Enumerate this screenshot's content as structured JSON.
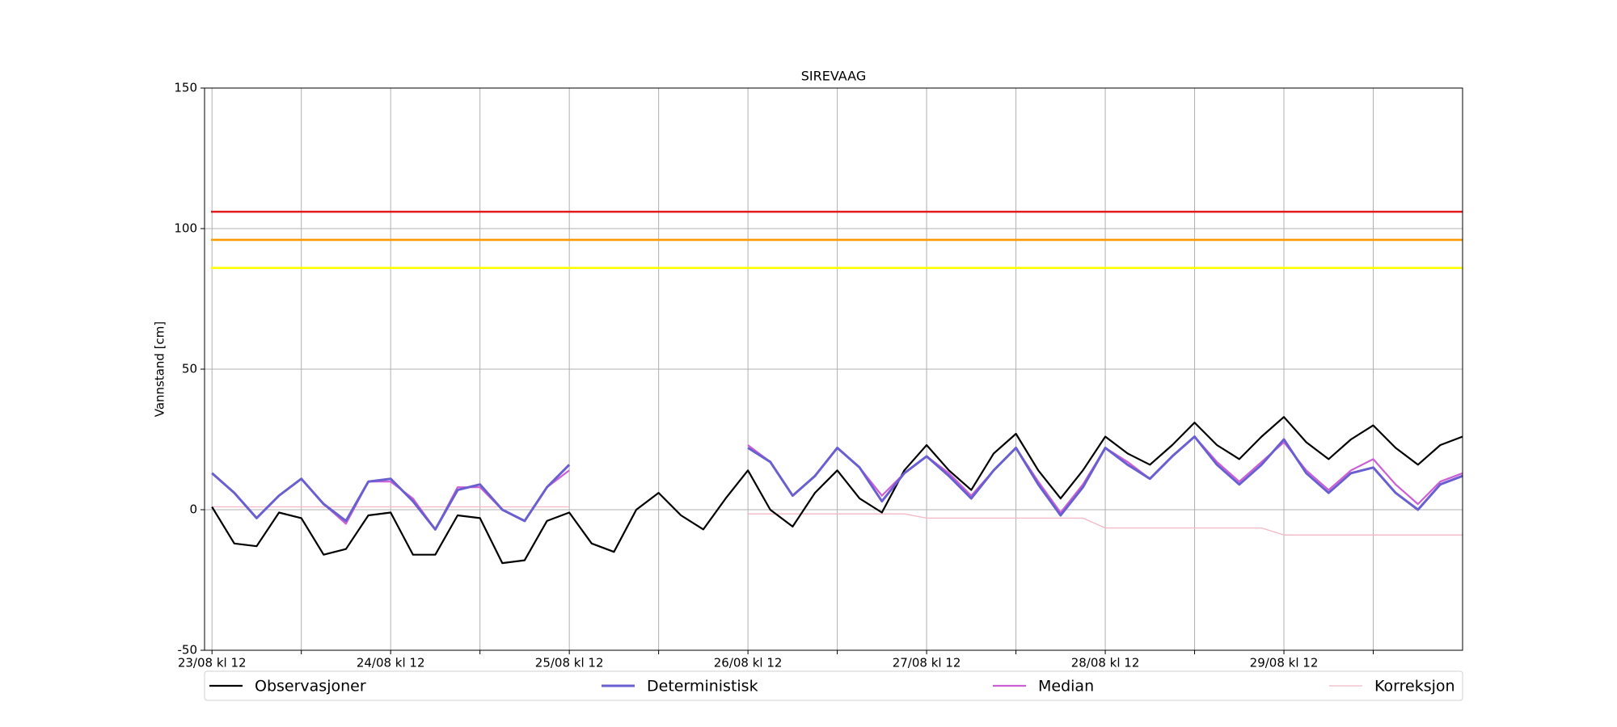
{
  "chart_data": {
    "type": "line",
    "title": "SIREVAAG",
    "ylabel": "Vannstand [cm]",
    "x": [
      "23/08 kl 12",
      "23/08 kl 15",
      "23/08 kl 18",
      "23/08 kl 21",
      "24/08 kl 00",
      "24/08 kl 03",
      "24/08 kl 06",
      "24/08 kl 09",
      "24/08 kl 12",
      "24/08 kl 15",
      "24/08 kl 18",
      "24/08 kl 21",
      "25/08 kl 00",
      "25/08 kl 03",
      "25/08 kl 06",
      "25/08 kl 09",
      "25/08 kl 12",
      "25/08 kl 15",
      "25/08 kl 18",
      "25/08 kl 21",
      "26/08 kl 00",
      "26/08 kl 03",
      "26/08 kl 06",
      "26/08 kl 09",
      "26/08 kl 12",
      "26/08 kl 15",
      "26/08 kl 18",
      "26/08 kl 21",
      "27/08 kl 00",
      "27/08 kl 03",
      "27/08 kl 06",
      "27/08 kl 09",
      "27/08 kl 12",
      "27/08 kl 15",
      "27/08 kl 18",
      "27/08 kl 21",
      "28/08 kl 00",
      "28/08 kl 03",
      "28/08 kl 06",
      "28/08 kl 09",
      "28/08 kl 12",
      "28/08 kl 15",
      "28/08 kl 18",
      "28/08 kl 21",
      "29/08 kl 00",
      "29/08 kl 03",
      "29/08 kl 06",
      "29/08 kl 09",
      "29/08 kl 12",
      "29/08 kl 15",
      "29/08 kl 18",
      "29/08 kl 21",
      "30/08 kl 00",
      "30/08 kl 03",
      "30/08 kl 06",
      "30/08 kl 09",
      "30/08 kl 12"
    ],
    "series": [
      {
        "name": "Observasjoner",
        "color": "#000000",
        "width": 2.2,
        "values": [
          1,
          -12,
          -13,
          -1,
          -3,
          -16,
          -14,
          -2,
          -1,
          -16,
          -16,
          -2,
          -3,
          -19,
          -18,
          -4,
          -1,
          -12,
          -15,
          0,
          6,
          -2,
          -7,
          4,
          14,
          0,
          -6,
          6,
          14,
          4,
          -1,
          14,
          23,
          14,
          7,
          20,
          27,
          14,
          4,
          14,
          26,
          20,
          16,
          23,
          31,
          23,
          18,
          26,
          33,
          24,
          18,
          25,
          30,
          22,
          16,
          23,
          26
        ]
      },
      {
        "name": "Deterministisk",
        "color": "#6a5fd0",
        "width": 3,
        "values": [
          13,
          6,
          -3,
          5,
          11,
          2,
          -4,
          10,
          11,
          3,
          -7,
          7,
          9,
          0,
          -4,
          8,
          16,
          null,
          null,
          null,
          null,
          null,
          null,
          null,
          22,
          17,
          5,
          12,
          22,
          15,
          3,
          13,
          19,
          12,
          4,
          14,
          22,
          9,
          -2,
          8,
          22,
          16,
          11,
          19,
          26,
          16,
          9,
          16,
          25,
          13,
          6,
          13,
          15,
          6,
          0,
          9,
          12
        ]
      },
      {
        "name": "Median",
        "color": "#cc5fd6",
        "width": 2.2,
        "values": [
          13,
          6,
          -3,
          5,
          11,
          2,
          -5,
          10,
          10,
          4,
          -7,
          8,
          8,
          0,
          -4,
          8,
          14,
          null,
          null,
          null,
          null,
          null,
          null,
          null,
          23,
          17,
          5,
          12,
          22,
          15,
          5,
          13,
          19,
          13,
          5,
          14,
          22,
          10,
          -1,
          9,
          22,
          17,
          11,
          19,
          26,
          17,
          10,
          17,
          24,
          14,
          7,
          14,
          18,
          9,
          2,
          10,
          13
        ]
      },
      {
        "name": "Korreksjon",
        "color": "#f4b8c4",
        "width": 1.3,
        "values": [
          1,
          1,
          1,
          1,
          1,
          1,
          1,
          1,
          1,
          1,
          1,
          1,
          1,
          1,
          1,
          1,
          1,
          null,
          null,
          null,
          null,
          null,
          null,
          null,
          -1.5,
          -1.5,
          -1.5,
          -1.5,
          -1.5,
          -1.5,
          -1.5,
          -1.5,
          -3,
          -3,
          -3,
          -3,
          -3,
          -3,
          -3,
          -3,
          -6.5,
          -6.5,
          -6.5,
          -6.5,
          -6.5,
          -6.5,
          -6.5,
          -6.5,
          -9,
          -9,
          -9,
          -9,
          -9,
          -9,
          -9,
          -9,
          -9
        ]
      }
    ],
    "hlines": [
      {
        "value": 106,
        "color": "#e31a1c"
      },
      {
        "value": 96,
        "color": "#ff9900"
      },
      {
        "value": 86,
        "color": "#ffff00"
      }
    ],
    "xlim": [
      "23/08 kl 11",
      "30/08 kl 12"
    ],
    "xticks": [
      "23/08 kl 12",
      "24/08 kl 12",
      "25/08 kl 12",
      "26/08 kl 12",
      "27/08 kl 12",
      "28/08 kl 12",
      "29/08 kl 12"
    ],
    "xminorticks": [
      "24/08 kl 00",
      "25/08 kl 00",
      "26/08 kl 00",
      "27/08 kl 00",
      "28/08 kl 00",
      "29/08 kl 00",
      "30/08 kl 00"
    ],
    "ylim": [
      -50,
      150
    ],
    "yticks": [
      -50,
      0,
      50,
      100,
      150
    ],
    "grid": true
  }
}
